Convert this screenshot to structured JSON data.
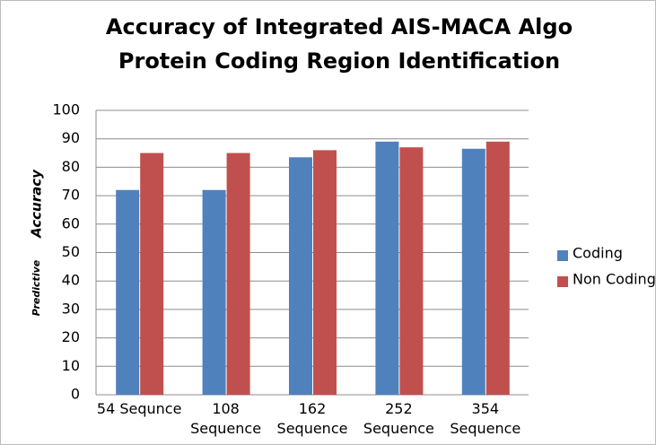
{
  "chart_data": {
    "type": "bar",
    "title_lines": [
      "Accuracy of Integrated AIS-MACA Algo",
      "Protein Coding Region Identification"
    ],
    "ylabel_parts": [
      "Predictive",
      "Accuracy"
    ],
    "categories": [
      "54 Sequnce",
      "108 Sequence",
      "162 Sequence",
      "252 Sequence",
      "354 Sequence"
    ],
    "series": [
      {
        "name": "Coding",
        "color": "#4f81bd",
        "values": [
          72,
          72,
          83.5,
          89,
          86.5
        ]
      },
      {
        "name": "Non Coding",
        "color": "#c0504d",
        "values": [
          85,
          85,
          86,
          87,
          89
        ]
      }
    ],
    "ylim": [
      0,
      100
    ],
    "yticks": [
      0,
      10,
      20,
      30,
      40,
      50,
      60,
      70,
      80,
      90,
      100
    ],
    "grid": true,
    "legend": "right"
  }
}
